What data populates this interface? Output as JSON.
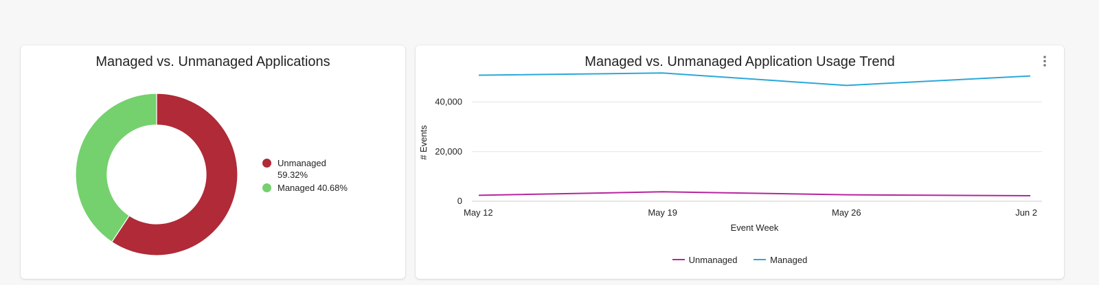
{
  "colors": {
    "unmanaged_donut": "#b02a37",
    "managed_donut": "#74d16d",
    "unmanaged_line": "#b5249c",
    "managed_line": "#2aa7d9"
  },
  "donut_card": {
    "title": "Managed vs. Unmanaged Applications",
    "legend": [
      {
        "label": "Unmanaged",
        "value": "59.32%",
        "color": "#b02a37"
      },
      {
        "label": "Managed",
        "value": "40.68%",
        "color": "#74d16d"
      }
    ]
  },
  "trend_card": {
    "title": "Managed vs. Unmanaged Application Usage Trend",
    "menu_icon": "kebab-menu-icon",
    "ylabel": "# Events",
    "xlabel": "Event Week",
    "legend": [
      {
        "label": "Unmanaged",
        "color": "#b5249c"
      },
      {
        "label": "Managed",
        "color": "#2aa7d9"
      }
    ]
  },
  "chart_data": [
    {
      "type": "pie",
      "title": "Managed vs. Unmanaged Applications",
      "donut": true,
      "categories": [
        "Unmanaged",
        "Managed"
      ],
      "values": [
        59.32,
        40.68
      ],
      "legend_placement": "right"
    },
    {
      "type": "line",
      "title": "Managed vs. Unmanaged Application Usage Trend",
      "xlabel": "Event Week",
      "ylabel": "# Events",
      "x": [
        "May 12",
        "May 19",
        "May 26",
        "Jun 2"
      ],
      "series": [
        {
          "name": "Unmanaged",
          "values": [
            2400,
            3800,
            2600,
            2200
          ]
        },
        {
          "name": "Managed",
          "values": [
            50800,
            51700,
            46700,
            50500
          ]
        }
      ],
      "yticks": [
        "0",
        "20,000",
        "40,000"
      ],
      "ylim": [
        0,
        54000
      ],
      "grid": true,
      "legend_placement": "bottom"
    }
  ]
}
